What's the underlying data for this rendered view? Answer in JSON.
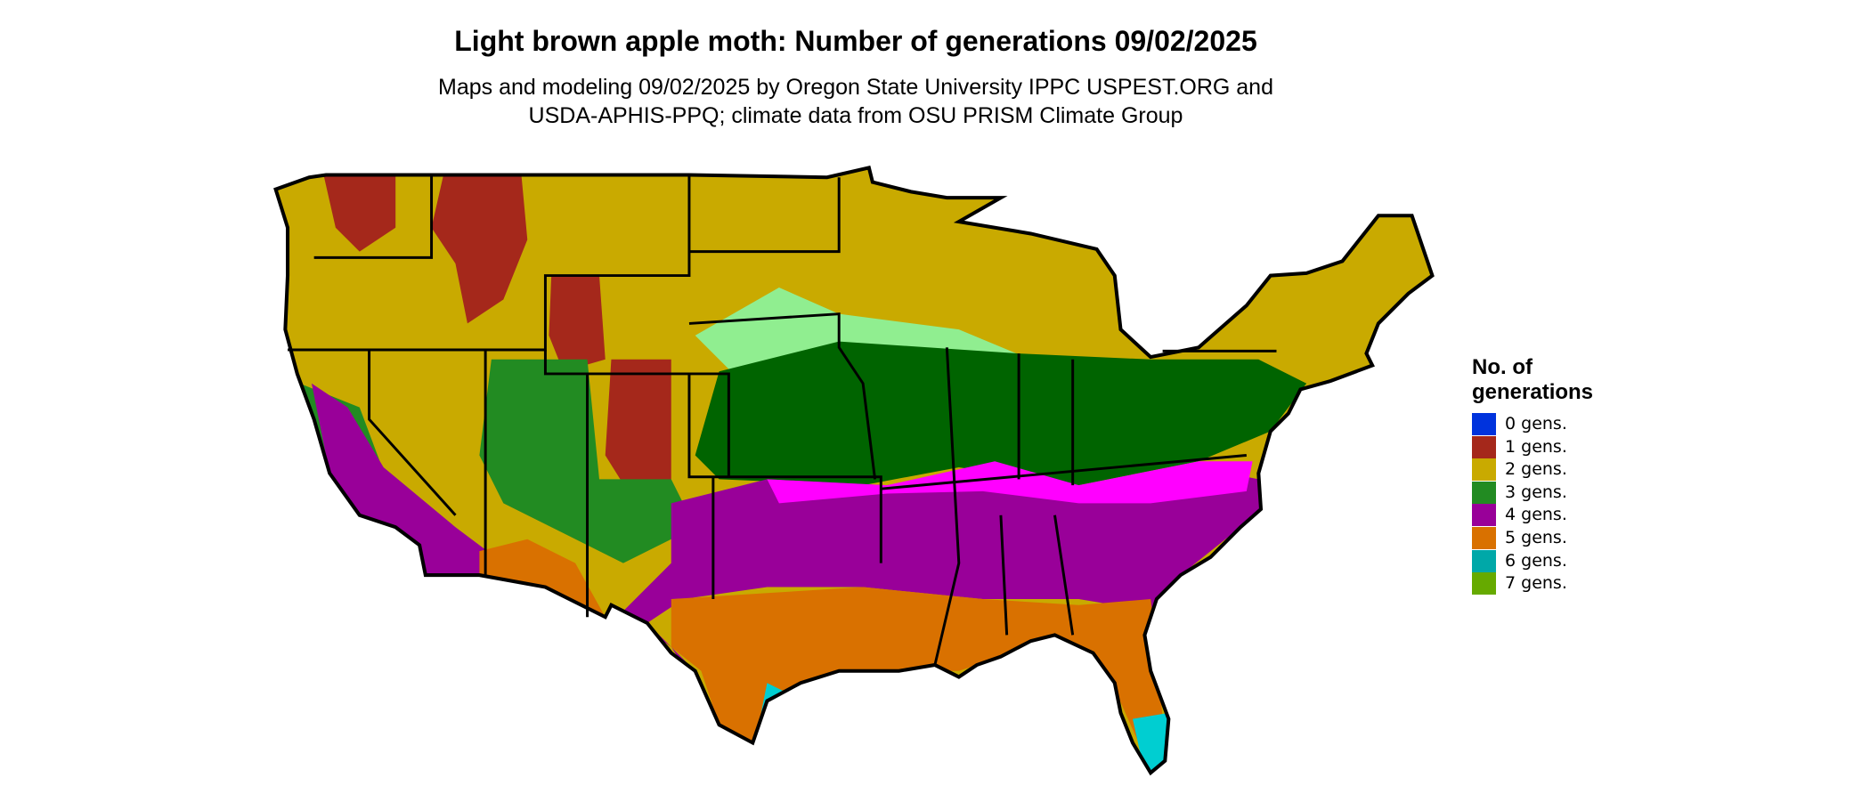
{
  "header": {
    "title": "Light brown apple moth: Number of generations 09/02/2025",
    "subtitle": [
      "Maps and modeling 09/02/2025 by Oregon State University IPPC USPEST.ORG and",
      "USDA-APHIS-PPQ; climate data from OSU PRISM Climate Group"
    ]
  },
  "legend": {
    "title": [
      "No. of",
      "generations"
    ],
    "items": [
      {
        "label": "0 gens.",
        "color": "#0033dd"
      },
      {
        "label": "1 gens.",
        "color": "#a5281b"
      },
      {
        "label": "2 gens.",
        "color": "#c9aa00"
      },
      {
        "label": "3 gens.",
        "color": "#228b22"
      },
      {
        "label": "4 gens.",
        "color": "#990099"
      },
      {
        "label": "5 gens.",
        "color": "#d97100"
      },
      {
        "label": "6 gens.",
        "color": "#00a8a8"
      },
      {
        "label": "7 gens.",
        "color": "#66aa00"
      }
    ]
  }
}
